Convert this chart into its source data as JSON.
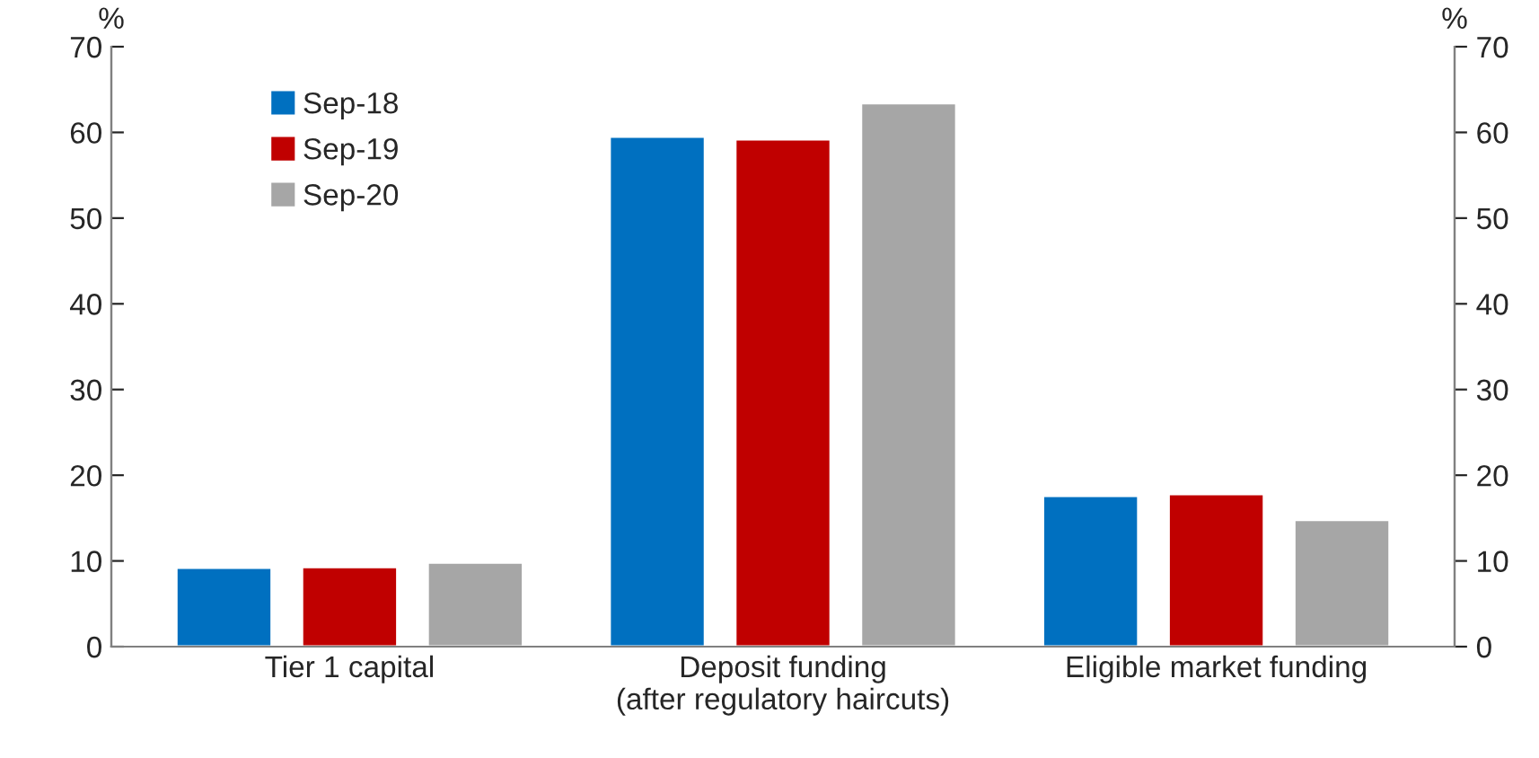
{
  "chart_data": {
    "type": "bar",
    "categories": [
      "Tier 1 capital",
      "Deposit funding\n(after regulatory haircuts)",
      "Eligible market funding"
    ],
    "series": [
      {
        "name": "Sep-18",
        "color": "#0070c0",
        "values": [
          9.2,
          59.5,
          17.6
        ]
      },
      {
        "name": "Sep-19",
        "color": "#c00000",
        "values": [
          9.3,
          59.2,
          17.8
        ]
      },
      {
        "name": "Sep-20",
        "color": "#a6a6a6",
        "values": [
          9.8,
          63.4,
          14.8
        ]
      }
    ],
    "ylabel": "%",
    "y2label": "%",
    "ylim": [
      0,
      70
    ],
    "yticks": [
      0,
      10,
      20,
      30,
      40,
      50,
      60,
      70
    ],
    "y2lim": [
      0,
      70
    ],
    "y2ticks": [
      0,
      10,
      20,
      30,
      40,
      50,
      60,
      70
    ],
    "grid": false,
    "legend": "top left"
  }
}
